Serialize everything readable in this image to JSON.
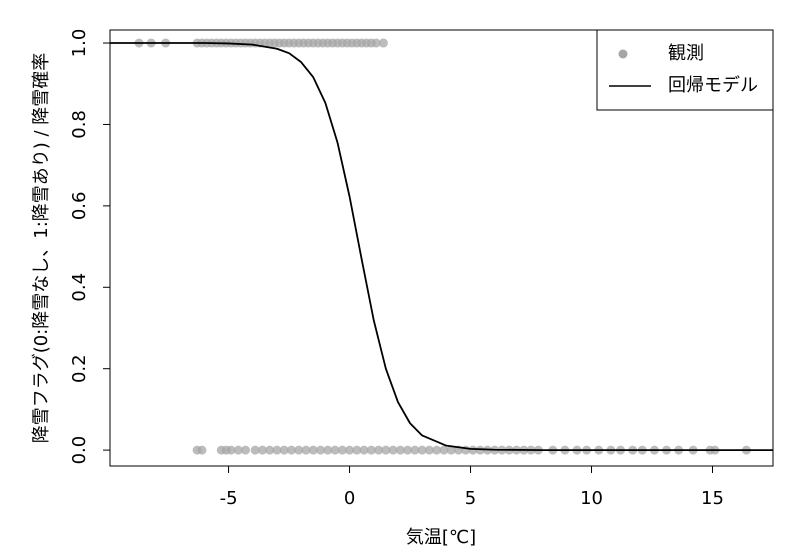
{
  "chart_data": {
    "type": "scatter",
    "xlabel": "気温[℃]",
    "ylabel": "降雪フラグ(0:降雪なし、1:降雪あり) / 降雪確率",
    "xlim": [
      -9.9,
      17.5
    ],
    "ylim": [
      -0.039,
      1.032
    ],
    "xticks": [
      -5,
      0,
      5,
      10,
      15
    ],
    "yticks": [
      {
        "value": 0,
        "label": "0.0"
      },
      {
        "value": 0.2,
        "label": "0.2"
      },
      {
        "value": 0.4,
        "label": "0.4"
      },
      {
        "value": 0.6,
        "label": "0.6"
      },
      {
        "value": 0.8,
        "label": "0.8"
      },
      {
        "value": 1,
        "label": "1.0"
      }
    ],
    "legend": "topright",
    "series": [
      {
        "name": "観測",
        "type": "scatter",
        "color": "#a6a6a6",
        "x": [
          -8.7,
          -8.2,
          -7.6,
          -6.3,
          -6.1,
          -5.9,
          -5.7,
          -5.5,
          -5.3,
          -5.1,
          -4.9,
          -4.7,
          -4.5,
          -4.3,
          -4.1,
          -3.9,
          -3.7,
          -3.5,
          -3.3,
          -3.1,
          -2.9,
          -2.7,
          -2.5,
          -2.3,
          -2.1,
          -1.9,
          -1.7,
          -1.5,
          -1.3,
          -1.1,
          -0.9,
          -0.7,
          -0.5,
          -0.3,
          -0.1,
          0.1,
          0.3,
          0.5,
          0.7,
          0.9,
          1.1,
          1.4,
          -6.3,
          -6.1,
          -5.3,
          -5.1,
          -4.9,
          -4.6,
          -4.3,
          -3.9,
          -3.6,
          -3.3,
          -3.0,
          -2.7,
          -2.4,
          -2.1,
          -1.8,
          -1.5,
          -1.2,
          -0.9,
          -0.6,
          -0.3,
          0,
          0.3,
          0.6,
          0.9,
          1.2,
          1.5,
          1.8,
          2.1,
          2.4,
          2.7,
          3.0,
          3.3,
          3.6,
          3.9,
          4.2,
          4.5,
          4.8,
          5.1,
          5.4,
          5.7,
          6.0,
          6.3,
          6.6,
          6.9,
          7.2,
          7.5,
          7.8,
          8.4,
          8.9,
          9.4,
          9.8,
          10.3,
          10.8,
          11.2,
          11.7,
          12.1,
          12.6,
          13.1,
          13.6,
          14.2,
          14.9,
          15.1,
          16.4
        ],
        "values": [
          1,
          1,
          1,
          1,
          1,
          1,
          1,
          1,
          1,
          1,
          1,
          1,
          1,
          1,
          1,
          1,
          1,
          1,
          1,
          1,
          1,
          1,
          1,
          1,
          1,
          1,
          1,
          1,
          1,
          1,
          1,
          1,
          1,
          1,
          1,
          1,
          1,
          1,
          1,
          1,
          1,
          1,
          0,
          0,
          0,
          0,
          0,
          0,
          0,
          0,
          0,
          0,
          0,
          0,
          0,
          0,
          0,
          0,
          0,
          0,
          0,
          0,
          0,
          0,
          0,
          0,
          0,
          0,
          0,
          0,
          0,
          0,
          0,
          0,
          0,
          0,
          0,
          0,
          0,
          0,
          0,
          0,
          0,
          0,
          0,
          0,
          0,
          0,
          0,
          0,
          0,
          0,
          0,
          0,
          0,
          0,
          0,
          0,
          0,
          0,
          0,
          0,
          0,
          0,
          0
        ]
      },
      {
        "name": "回帰モデル",
        "type": "line",
        "color": "#000000",
        "x": [
          -9.9,
          -8,
          -6,
          -5,
          -4,
          -3,
          -2.5,
          -2,
          -1.5,
          -1,
          -0.5,
          0,
          0.5,
          1,
          1.5,
          2,
          2.5,
          3,
          4,
          5,
          6,
          8,
          10,
          17.5
        ],
        "values": [
          1,
          1,
          1,
          0.999,
          0.996,
          0.986,
          0.975,
          0.953,
          0.916,
          0.853,
          0.756,
          0.623,
          0.469,
          0.319,
          0.2,
          0.118,
          0.066,
          0.036,
          0.011,
          0.003,
          0.001,
          0,
          0,
          0
        ]
      }
    ]
  }
}
